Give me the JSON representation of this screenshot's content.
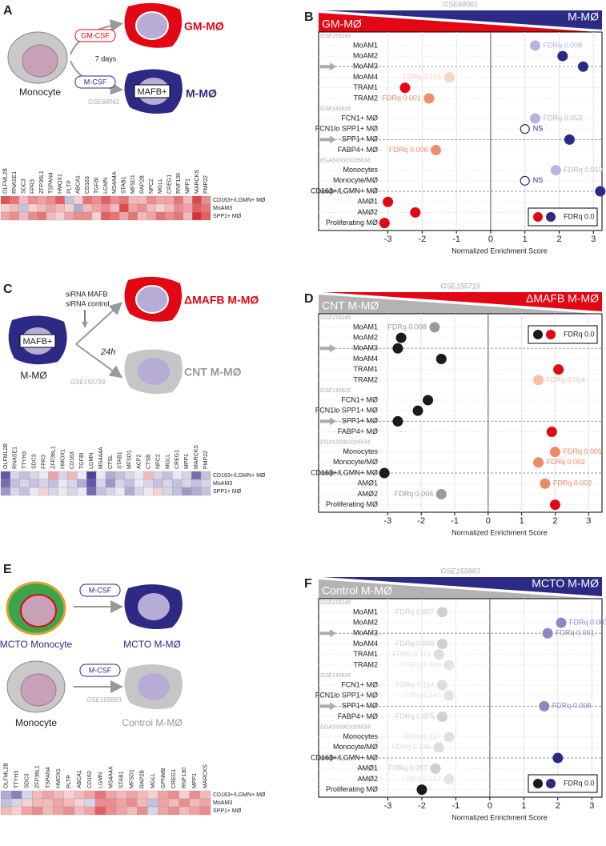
{
  "diagrams": [
    {
      "letter": "A",
      "source": "Monocyte",
      "treatment_1": "GM-CSF",
      "treatment_2": "M-CSF",
      "duration": "7 days",
      "result_1": "GM-MØ",
      "marker": "MAFB+",
      "result_2": "M-MØ",
      "dataset": "GSE68061"
    },
    {
      "letter": "C",
      "source": "M-MØ",
      "marker": "MAFB+",
      "treatment_1": "siRNA MAFB",
      "treatment_2": "siRNA control",
      "duration": "24h",
      "result_1": "ΔMAFB M-MØ",
      "result_2": "CNT M-MØ",
      "dataset": "GSE155719"
    },
    {
      "letter": "E",
      "source_1": "MCTO Monocyte",
      "source_2": "Monocyte",
      "treatment_1": "M-CSF",
      "treatment_2": "M-CSF",
      "result_1": "MCTO M-MØ",
      "result_2": "Control M-MØ",
      "dataset": "GSE155883"
    }
  ],
  "chart_data": [
    {
      "type": "dot",
      "letter": "B",
      "title": "GSE68061",
      "banner": {
        "left": "GM-MØ",
        "right": "M-MØ",
        "left_color": "#e30613",
        "right_color": "#2d2a86"
      },
      "xlabel": "Normalized Enrichment Score",
      "xlim": [
        -3.2,
        3.25
      ],
      "xticks": [
        -3,
        -2,
        -1,
        0,
        1,
        2,
        3
      ],
      "grid": true,
      "legend": {
        "label": "FDRq 0.0",
        "colors": [
          "#e30613",
          "#2d2a86"
        ],
        "position": "bottom-right"
      },
      "groups": [
        {
          "label": "GSE155249",
          "categories": [
            "MoAM1",
            "MoAM2",
            "MoAM3",
            "MoAM4",
            "TRAM1",
            "TRAM2"
          ],
          "values": [
            1.3,
            2.1,
            2.7,
            -1.2,
            -2.5,
            -1.8
          ],
          "colors": [
            "#b9b4dd",
            "#2d2a86",
            "#2d2a86",
            "#fbd3c3",
            "#e30613",
            "#f08c6c"
          ],
          "fdr_labels": [
            "FDRq 0.008",
            null,
            null,
            "FDRq 0.101",
            null,
            "FDRq 0.001"
          ],
          "arrows": [
            false,
            false,
            true,
            false,
            false,
            false
          ]
        },
        {
          "label": "GSE145926",
          "categories": [
            "FCN1+ MØ",
            "FCN1lo SPP1+ MØ",
            "SPP1+ MØ",
            "FABP4+ MØ"
          ],
          "values": [
            1.3,
            1.0,
            2.3,
            -1.6
          ],
          "colors": [
            "#b9b4dd",
            "#2d2a86",
            "#2d2a86",
            "#f08c6c"
          ],
          "hollow": [
            false,
            true,
            false,
            false
          ],
          "fdr_labels": [
            "FDRq 0.053",
            "NS",
            null,
            "FDRq 0.006"
          ],
          "arrows": [
            false,
            false,
            true,
            false
          ]
        },
        {
          "label": "EGAS00001005634",
          "categories": [
            "Monocytes",
            "Monocyte/MØ",
            "CD163+/LGMN+ MØ",
            "AMØ1",
            "AMØ2",
            "Proliferating MØ"
          ],
          "values": [
            1.9,
            1.0,
            3.2,
            -3.0,
            -2.2,
            -3.1
          ],
          "colors": [
            "#b9b4dd",
            "#2d2a86",
            "#2d2a86",
            "#e30613",
            "#e30613",
            "#e30613"
          ],
          "hollow": [
            false,
            true,
            false,
            false,
            false,
            false
          ],
          "fdr_labels": [
            "FDRq 0.019",
            "NS",
            null,
            null,
            null,
            null
          ],
          "arrows": [
            false,
            false,
            true,
            false,
            false,
            false
          ]
        }
      ]
    },
    {
      "type": "dot",
      "letter": "D",
      "title": "GSE155719",
      "banner": {
        "left": "CNT M-MØ",
        "right": "ΔMAFB M-MØ",
        "left_color": "#b3b3b3",
        "right_color": "#e30613"
      },
      "xlabel": "Normalized Enrichment Score",
      "xlim": [
        -3.2,
        3.4
      ],
      "xticks": [
        -3,
        -2,
        -1,
        0,
        1,
        2,
        3
      ],
      "grid": true,
      "legend": {
        "label": "FDRq 0.0",
        "colors": [
          "#1a1a1a",
          "#e30613"
        ],
        "position": "top-right"
      },
      "groups": [
        {
          "label": "GSE155249",
          "categories": [
            "MoAM1",
            "MoAM2",
            "MoAM3",
            "MoAM4",
            "TRAM1",
            "TRAM2"
          ],
          "values": [
            -1.6,
            -2.6,
            -2.7,
            -1.4,
            2.1,
            1.5
          ],
          "colors": [
            "#9a9a9a",
            "#1a1a1a",
            "#1a1a1a",
            "#1a1a1a",
            "#e30613",
            "#f8bfa8"
          ],
          "fdr_labels": [
            "FDRq 0.008",
            null,
            null,
            null,
            null,
            "FDRq 0.014"
          ],
          "arrows": [
            false,
            false,
            true,
            false,
            false,
            false
          ]
        },
        {
          "label": "GSE145926",
          "categories": [
            "FCN1+ MØ",
            "FCN1lo SPP1+ MØ",
            "SPP1+ MØ",
            "FABP4+ MØ"
          ],
          "values": [
            -1.8,
            -2.1,
            -2.7,
            1.9
          ],
          "colors": [
            "#1a1a1a",
            "#1a1a1a",
            "#1a1a1a",
            "#e30613"
          ],
          "fdr_labels": [
            null,
            null,
            null,
            null
          ],
          "arrows": [
            false,
            false,
            true,
            false
          ]
        },
        {
          "label": "EGAS00001005634",
          "categories": [
            "Monocytes",
            "Monocyte/MØ",
            "CD163+/LGMN+ MØ",
            "AMØ1",
            "AMØ2",
            "Proliferating MØ"
          ],
          "values": [
            2.0,
            1.5,
            -3.1,
            1.7,
            -1.4,
            2.0
          ],
          "colors": [
            "#ee8866",
            "#ee8866",
            "#1a1a1a",
            "#ee8866",
            "#9a9a9a",
            "#e30613"
          ],
          "fdr_labels": [
            "FDRq 0.001",
            "FDRq 0.002",
            null,
            "FDRq 0.002",
            "FDRq 0.005",
            null
          ],
          "arrows": [
            false,
            false,
            true,
            false,
            false,
            false
          ]
        }
      ]
    },
    {
      "type": "dot",
      "letter": "F",
      "title": "GSE155883",
      "banner": {
        "left": "Control M-MØ",
        "right": "MCTO M-MØ",
        "left_color": "#b3b3b3",
        "right_color": "#2d2a86"
      },
      "xlabel": "Normalized Enrichment Score",
      "xlim": [
        -3.2,
        3.3
      ],
      "xticks": [
        -3,
        -2,
        -1,
        0,
        1,
        2,
        3
      ],
      "grid": true,
      "legend": {
        "label": "FDRq 0.0",
        "colors": [
          "#1a1a1a",
          "#2d2a86"
        ],
        "position": "bottom-right"
      },
      "groups": [
        {
          "label": "GSE155249",
          "categories": [
            "MoAM1",
            "MoAM2",
            "MoAM3",
            "MoAM4",
            "TRAM1",
            "TRAM2"
          ],
          "values": [
            -1.4,
            2.1,
            1.7,
            -1.4,
            -1.5,
            -1.2
          ],
          "colors": [
            "#d0d0d0",
            "#8e87c4",
            "#8e87c4",
            "#d0d0d0",
            "#dedede",
            "#e4e4e4"
          ],
          "fdr_labels": [
            "FDRq 0.097",
            "FDRq 0.001",
            "FDRq 0.001",
            "FDRq 0.088",
            "FDRq 0.112",
            "FDRq 0.195"
          ],
          "arrows": [
            false,
            false,
            true,
            false,
            false,
            false
          ]
        },
        {
          "label": "GSE145926",
          "categories": [
            "FCN1+ MØ",
            "FCN1lo SPP1+ MØ",
            "SPP1+ MØ",
            "FABP4+ MØ"
          ],
          "values": [
            -1.4,
            -1.2,
            1.6,
            -1.4
          ],
          "colors": [
            "#dedede",
            "#e4e4e4",
            "#8e87c4",
            "#d0d0d0"
          ],
          "fdr_labels": [
            "FDRq 0.114",
            "FDRq 0.145",
            "FDRq 0.008",
            "FDRq 0.075"
          ],
          "arrows": [
            false,
            false,
            true,
            false
          ]
        },
        {
          "label": "EGAS00001005634",
          "categories": [
            "Monocytes",
            "Monocyte/MØ",
            "CD163+/LGMN+ MØ",
            "AMØ1",
            "AMØ2",
            "Proliferating MØ"
          ],
          "values": [
            -1.2,
            -1.5,
            2.0,
            -1.6,
            -1.2,
            -2.0
          ],
          "colors": [
            "#e0e0e0",
            "#dedede",
            "#2d2a86",
            "#cfcfcf",
            "#e4e4e4",
            "#1a1a1a"
          ],
          "fdr_labels": [
            "FDRq 0.137",
            "FDRq 0.136",
            null,
            "FDRq 0.057",
            "FDRq 0.182",
            null
          ],
          "arrows": [
            false,
            false,
            true,
            false,
            false,
            false
          ]
        }
      ]
    },
    {
      "type": "heatmap",
      "zlim": [
        -2,
        2
      ],
      "colors": [
        "#3b2f8f",
        "#ffffff",
        "#d7191c"
      ],
      "columns": [
        "OLFML2B",
        "RNASE1",
        "SDC3",
        "FPR3",
        "ZFP36L1",
        "TSPAN4",
        "HMOX1",
        "PLTP",
        "ABCA1",
        "CD163",
        "TGFBI",
        "LGMN",
        "MS4A4A",
        "STAB1",
        "MFSD1",
        "RAP2B",
        "NPC2",
        "MGLL",
        "CREG1",
        "RNF130",
        "MPP1",
        "MARCKS",
        "PMP22"
      ],
      "rows": [
        "CD163+/LGMN+ MØ",
        "MoAM3",
        "SPP1+ MØ"
      ],
      "values": [
        [
          1.5,
          1.2,
          0.6,
          1.0,
          0.8,
          1.0,
          1.4,
          -0.6,
          0.4,
          1.2,
          1.0,
          1.4,
          1.0,
          1.2,
          0.6,
          0.6,
          1.0,
          0.8,
          0.8,
          1.2,
          0.6,
          1.6,
          1.0
        ],
        [
          0.4,
          0.6,
          -0.6,
          0.4,
          0.6,
          0.8,
          0.6,
          0.4,
          -0.8,
          0.6,
          0.8,
          1.0,
          0.6,
          1.6,
          0.8,
          1.0,
          0.6,
          0.4,
          0.6,
          1.0,
          0.8,
          1.4,
          1.2
        ],
        [
          0.8,
          1.0,
          0.6,
          1.0,
          1.2,
          0.6,
          0.4,
          0.8,
          1.0,
          1.0,
          0.4,
          1.4,
          1.2,
          0.8,
          1.2,
          0.6,
          0.8,
          1.2,
          1.0,
          1.2,
          0.6,
          1.8,
          1.4
        ]
      ]
    },
    {
      "type": "heatmap",
      "zlim": [
        -2,
        2
      ],
      "colors": [
        "#3b2f8f",
        "#ffffff",
        "#d7191c"
      ],
      "columns": [
        "OLFML2B",
        "RNASE1",
        "TTYH3",
        "SDC3",
        "FPR3",
        "ZFP36L1",
        "HMOX1",
        "CD163",
        "TGFBI",
        "LGMN",
        "MS4A4A",
        "CTSL",
        "STAB1",
        "MFSD1",
        "ACP2",
        "CTSB",
        "NPC2",
        "MGLL",
        "CREG1",
        "MPP1",
        "MARCKS",
        "PMP22"
      ],
      "rows": [
        "CD163+/LGMN+ MØ",
        "MoAM3",
        "SPP1+ MØ"
      ],
      "values": [
        [
          -1.6,
          -0.4,
          -0.6,
          -0.4,
          -0.2,
          0.8,
          -0.4,
          0.6,
          -0.2,
          -1.8,
          -0.2,
          -0.8,
          -0.6,
          -0.4,
          -0.2,
          0.6,
          -0.4,
          -0.6,
          -0.2,
          -0.4,
          -1.4,
          -0.6
        ],
        [
          -1.4,
          -0.6,
          -0.4,
          -0.6,
          -0.4,
          -0.6,
          -0.2,
          -0.4,
          -0.8,
          -1.6,
          -0.4,
          -1.0,
          -0.4,
          -0.6,
          -0.2,
          -0.4,
          -0.6,
          -0.4,
          -0.6,
          -0.4,
          -0.6,
          -0.4
        ],
        [
          -1.0,
          -0.4,
          -0.6,
          -0.2,
          0.4,
          -0.4,
          -0.2,
          -0.4,
          -0.2,
          -1.4,
          -0.6,
          -0.4,
          -0.2,
          -0.8,
          -0.4,
          -0.2,
          0.4,
          -0.4,
          -0.6,
          -1.0,
          -0.8,
          -0.6
        ]
      ]
    },
    {
      "type": "heatmap",
      "zlim": [
        -2,
        2
      ],
      "colors": [
        "#3b2f8f",
        "#ffffff",
        "#d7191c"
      ],
      "columns": [
        "OLFML2B",
        "TTYH3",
        "SDC3",
        "ZFP36L1",
        "TSPAN4",
        "HMOX1",
        "PLTP",
        "ABCA1",
        "CD163",
        "LGMN",
        "MS4A4A",
        "STAB1",
        "MFSD1",
        "RAP2B",
        "MGLL",
        "GPNMB",
        "CREG1",
        "RNF130",
        "MPP1",
        "MARCKS"
      ],
      "rows": [
        "CD163+/LGMN+ MØ",
        "MoAM3",
        "SPP1+ MØ"
      ],
      "values": [
        [
          -0.8,
          -1.2,
          -0.4,
          0.6,
          0.8,
          0.6,
          0.4,
          0.6,
          0.8,
          1.2,
          0.8,
          0.6,
          0.8,
          0.6,
          0.4,
          0.8,
          1.0,
          0.4,
          1.0,
          0.6
        ],
        [
          -0.6,
          -0.4,
          0.4,
          0.6,
          0.6,
          0.8,
          0.6,
          0.4,
          -0.4,
          1.0,
          1.0,
          0.8,
          1.0,
          0.6,
          -0.6,
          0.8,
          0.6,
          1.0,
          0.6,
          0.8
        ],
        [
          0.6,
          0.4,
          0.8,
          1.0,
          0.6,
          0.8,
          1.0,
          0.6,
          0.8,
          1.4,
          1.0,
          0.8,
          0.6,
          1.0,
          -0.4,
          0.8,
          1.0,
          0.6,
          0.8,
          1.0
        ]
      ]
    }
  ]
}
